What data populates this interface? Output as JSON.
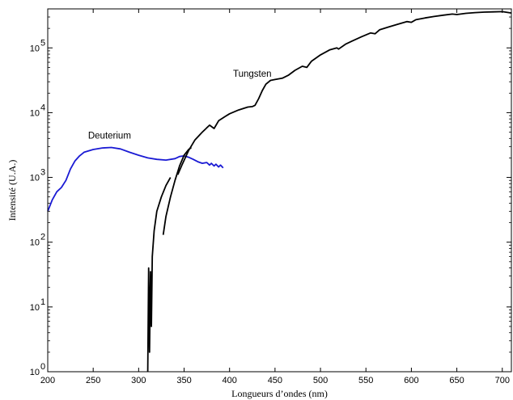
{
  "chart_data": {
    "type": "line",
    "xlabel": "Longueurs d’ondes (nm)",
    "ylabel": "Intensité (U.A.)",
    "xlim": [
      200,
      710
    ],
    "ylim": [
      1,
      400000
    ],
    "yscale": "log",
    "grid": false,
    "legend": "none",
    "x_ticks": [
      200,
      250,
      300,
      350,
      400,
      450,
      500,
      550,
      600,
      650,
      700
    ],
    "y_ticks": [
      {
        "value": 1,
        "base": "10",
        "exp": "0"
      },
      {
        "value": 10,
        "base": "10",
        "exp": "1"
      },
      {
        "value": 100,
        "base": "10",
        "exp": "2"
      },
      {
        "value": 1000,
        "base": "10",
        "exp": "3"
      },
      {
        "value": 10000,
        "base": "10",
        "exp": "4"
      },
      {
        "value": 100000,
        "base": "10",
        "exp": "5"
      }
    ],
    "annotations": [
      {
        "text": "Deuterium",
        "x": 268,
        "y": 4000
      },
      {
        "text": "Tungsten",
        "x": 425,
        "y": 36000
      }
    ],
    "series": [
      {
        "color": "#1a1ad4",
        "points": [
          [
            200,
            300
          ],
          [
            205,
            450
          ],
          [
            210,
            600
          ],
          [
            215,
            700
          ],
          [
            220,
            900
          ],
          [
            225,
            1350
          ],
          [
            230,
            1800
          ],
          [
            235,
            2150
          ],
          [
            240,
            2450
          ],
          [
            250,
            2700
          ],
          [
            260,
            2850
          ],
          [
            270,
            2900
          ],
          [
            280,
            2750
          ],
          [
            290,
            2450
          ],
          [
            300,
            2200
          ],
          [
            310,
            2000
          ],
          [
            320,
            1900
          ],
          [
            330,
            1850
          ],
          [
            340,
            1950
          ],
          [
            345,
            2100
          ],
          [
            350,
            2150
          ],
          [
            355,
            2050
          ],
          [
            360,
            1900
          ],
          [
            365,
            1750
          ],
          [
            370,
            1650
          ],
          [
            375,
            1700
          ],
          [
            378,
            1550
          ],
          [
            380,
            1650
          ],
          [
            383,
            1500
          ],
          [
            385,
            1600
          ],
          [
            388,
            1450
          ],
          [
            390,
            1550
          ],
          [
            393,
            1400
          ]
        ]
      },
      {
        "color": "#000000",
        "points": [
          [
            310,
            1
          ],
          [
            311,
            40
          ],
          [
            312,
            2
          ],
          [
            313,
            35
          ],
          [
            314,
            5
          ],
          [
            315,
            60
          ],
          [
            317,
            150
          ],
          [
            320,
            300
          ],
          [
            325,
            500
          ],
          [
            330,
            750
          ],
          [
            335,
            1000
          ]
        ]
      },
      {
        "color": "#000000",
        "points": [
          [
            327,
            130
          ],
          [
            330,
            250
          ],
          [
            335,
            500
          ],
          [
            340,
            900
          ],
          [
            345,
            1500
          ],
          [
            350,
            2200
          ],
          [
            355,
            2700
          ],
          [
            358,
            2900
          ]
        ]
      },
      {
        "color": "#000000",
        "points": [
          [
            343,
            1100
          ],
          [
            348,
            1600
          ],
          [
            355,
            2600
          ],
          [
            362,
            3800
          ],
          [
            370,
            5000
          ],
          [
            378,
            6400
          ],
          [
            383,
            5700
          ],
          [
            388,
            7500
          ],
          [
            395,
            8700
          ],
          [
            400,
            9600
          ],
          [
            410,
            11000
          ],
          [
            420,
            12200
          ],
          [
            425,
            12400
          ],
          [
            428,
            13000
          ],
          [
            432,
            16500
          ],
          [
            436,
            22000
          ],
          [
            440,
            27500
          ],
          [
            445,
            31500
          ],
          [
            450,
            32500
          ],
          [
            458,
            34000
          ],
          [
            465,
            38000
          ],
          [
            472,
            45000
          ],
          [
            480,
            52000
          ],
          [
            485,
            50000
          ],
          [
            490,
            62000
          ],
          [
            500,
            78000
          ],
          [
            510,
            93000
          ],
          [
            518,
            100000
          ],
          [
            520,
            96000
          ],
          [
            528,
            115000
          ],
          [
            535,
            128000
          ],
          [
            545,
            148000
          ],
          [
            555,
            170000
          ],
          [
            560,
            165000
          ],
          [
            565,
            190000
          ],
          [
            575,
            210000
          ],
          [
            585,
            232000
          ],
          [
            595,
            255000
          ],
          [
            600,
            248000
          ],
          [
            605,
            272000
          ],
          [
            615,
            290000
          ],
          [
            625,
            305000
          ],
          [
            635,
            320000
          ],
          [
            645,
            333000
          ],
          [
            650,
            327000
          ],
          [
            660,
            342000
          ],
          [
            670,
            350000
          ],
          [
            680,
            357000
          ],
          [
            690,
            360000
          ],
          [
            700,
            363000
          ],
          [
            710,
            345000
          ]
        ]
      }
    ]
  }
}
